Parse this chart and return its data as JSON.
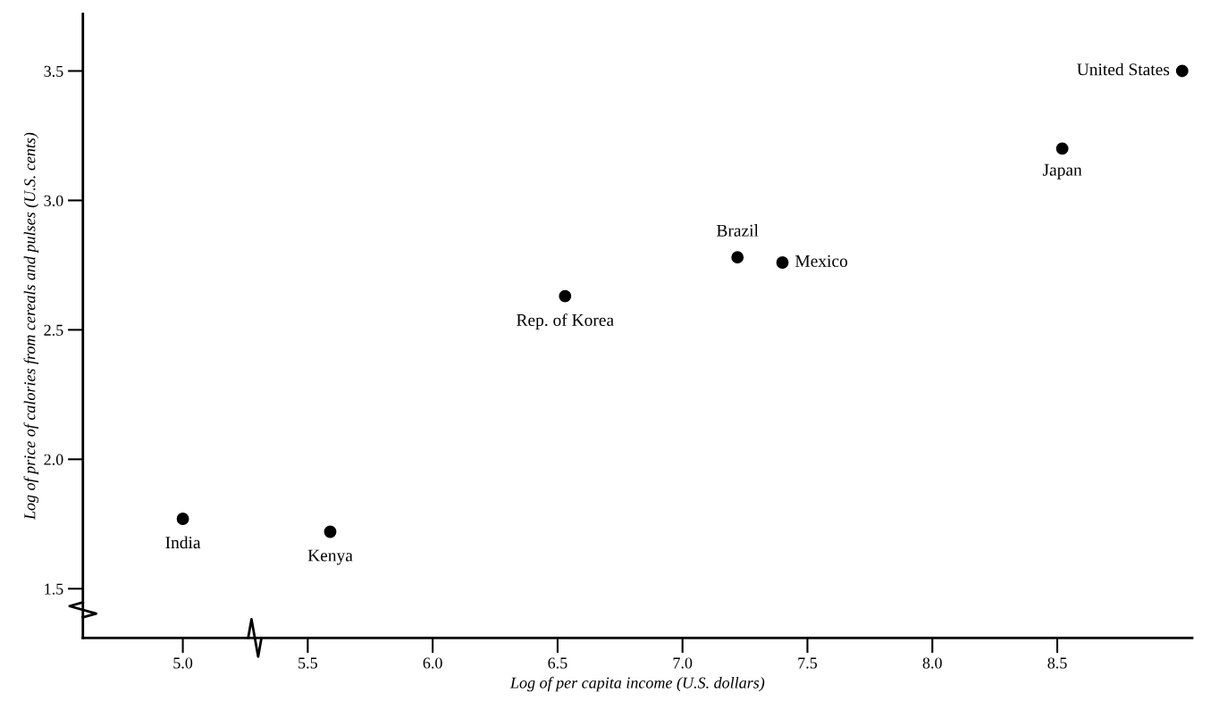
{
  "chart_data": {
    "type": "scatter",
    "xlabel": "Log of per capita income (U.S. dollars)",
    "ylabel": "Log of price of calories from cereals and pulses (U.S. cents)",
    "x": [
      5.0,
      5.59,
      6.53,
      7.22,
      7.4,
      8.52,
      9.0
    ],
    "series": [
      {
        "color": "#000000",
        "values": [
          1.77,
          1.72,
          2.63,
          2.78,
          2.76,
          3.2,
          3.5
        ]
      }
    ],
    "annotations": [
      {
        "text": "India",
        "x": 5.0,
        "y": 1.77
      },
      {
        "text": "Kenya",
        "x": 5.59,
        "y": 1.72
      },
      {
        "text": "Rep. of Korea",
        "x": 6.53,
        "y": 2.63
      },
      {
        "text": "Brazil",
        "x": 7.22,
        "y": 2.78
      },
      {
        "text": "Mexico",
        "x": 7.4,
        "y": 2.76
      },
      {
        "text": "Japan",
        "x": 8.52,
        "y": 3.2
      },
      {
        "text": "United States",
        "x": 9.0,
        "y": 3.5
      }
    ],
    "xlim": [
      4.6,
      9.04
    ],
    "ylim": [
      1.31,
      3.72
    ],
    "xticks": [
      {
        "value": 5,
        "label": "5.0"
      },
      5.5,
      {
        "value": 6,
        "label": "6.0"
      },
      6.5,
      {
        "value": 7,
        "label": "7.0"
      },
      7.5,
      {
        "value": 8,
        "label": "8.0"
      },
      8.5
    ],
    "yticks": [
      1.5,
      {
        "value": 2,
        "label": "2.0"
      },
      2.5,
      {
        "value": 3,
        "label": "3.0"
      },
      3.5
    ],
    "marker": "circle",
    "grid": false
  }
}
